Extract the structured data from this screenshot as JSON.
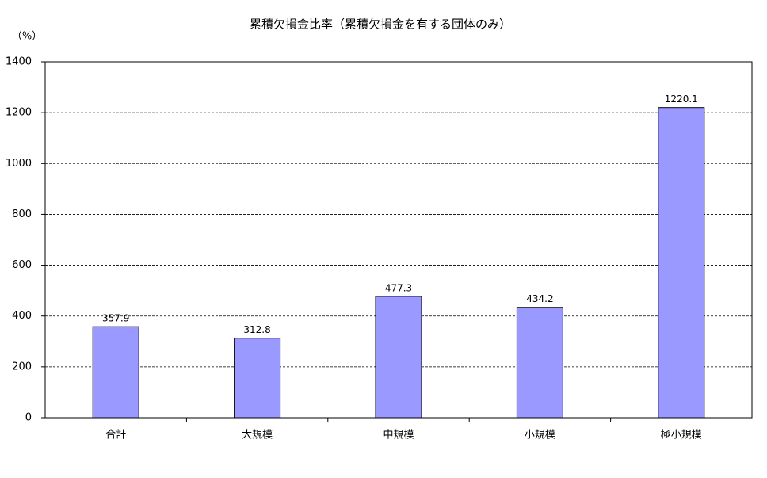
{
  "chart_data": {
    "type": "bar",
    "title": "累積欠損金比率（累積欠損金を有する団体のみ）",
    "y_label": "（%）",
    "categories": [
      "合計",
      "大規模",
      "中規模",
      "小規模",
      "極小規模"
    ],
    "values": [
      357.9,
      312.8,
      477.3,
      434.2,
      1220.1
    ],
    "color": "#9999ff",
    "ylim": [
      0,
      1400
    ],
    "yticks": [
      0,
      200,
      400,
      600,
      800,
      1000,
      1200,
      1400
    ],
    "grid": true
  }
}
